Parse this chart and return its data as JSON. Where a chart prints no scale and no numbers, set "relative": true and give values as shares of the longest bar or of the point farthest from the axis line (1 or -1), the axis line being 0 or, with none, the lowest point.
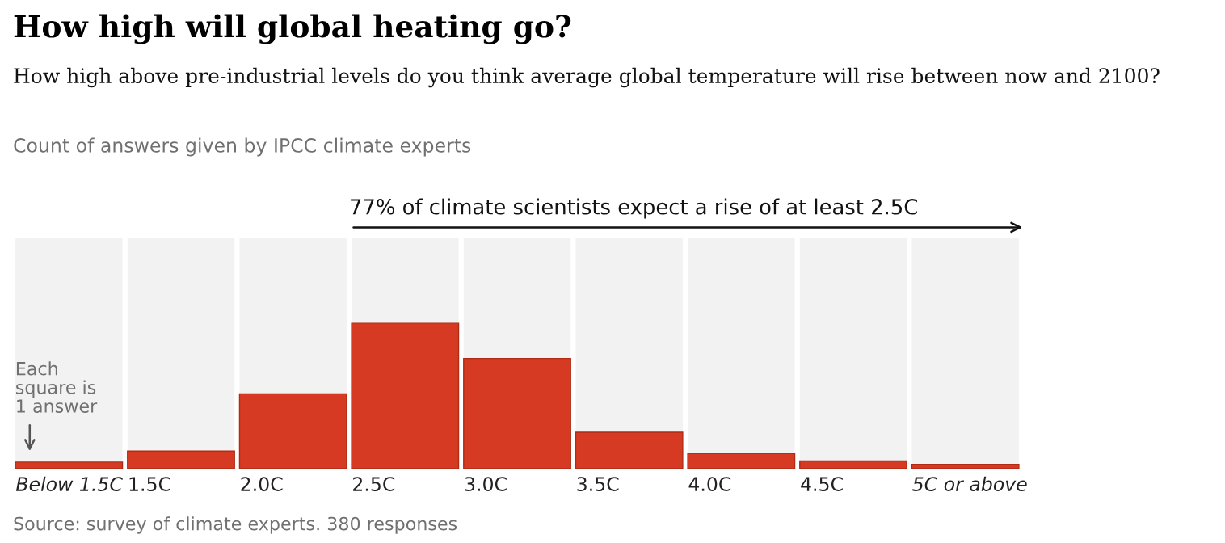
{
  "chart_data": {
    "type": "bar",
    "relative": true,
    "title": "How high will global heating go?",
    "subtitle": "How high above pre-industrial levels do you think average global temperature will rise between now and 2100?",
    "categories": [
      "Below 1.5C",
      "1.5C",
      "2.0C",
      "2.5C",
      "3.0C",
      "3.5C",
      "4.0C",
      "4.5C",
      "5C or above"
    ],
    "values": [
      0.045,
      0.121,
      0.515,
      1,
      0.758,
      0.25,
      0.106,
      0.053,
      0.03
    ],
    "color": "#d63a22",
    "annotations": [
      "Count of answers given by IPCC climate experts",
      "Each\nsquare is\n1 answer",
      "77% of climate scientists expect a rise of at least 2.5C",
      "Source: survey of climate experts. 380 responses"
    ],
    "grid": false,
    "legend": false
  }
}
